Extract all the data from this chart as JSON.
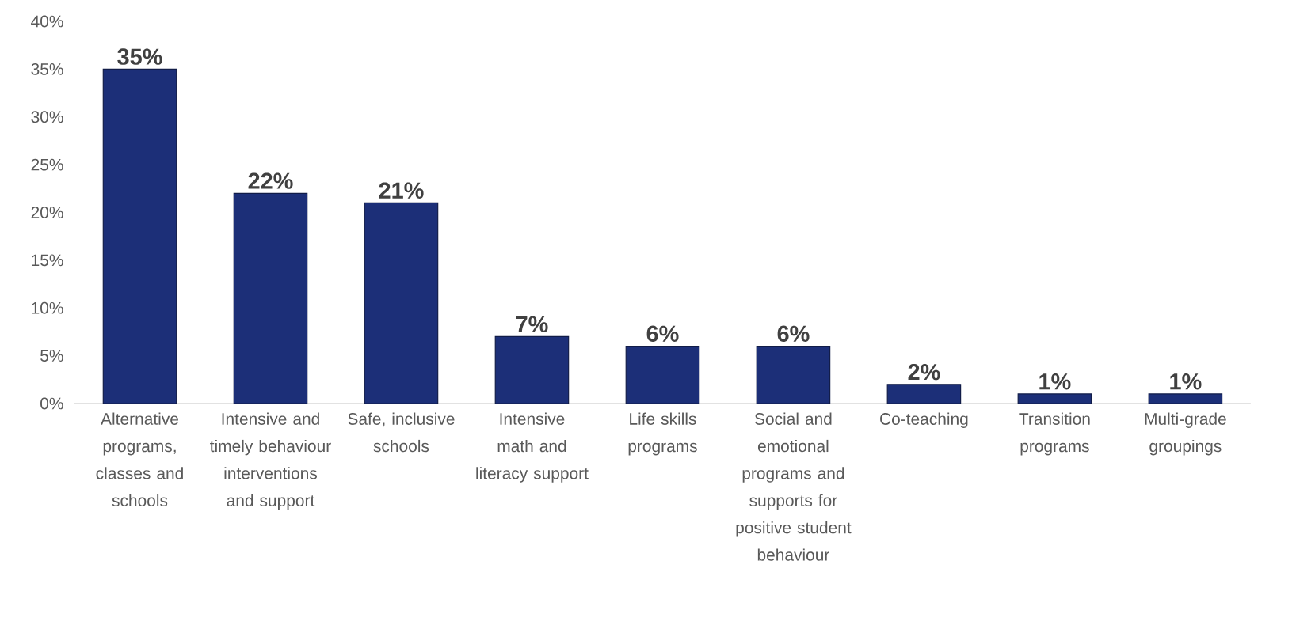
{
  "chart_data": {
    "type": "bar",
    "categories": [
      "Alternative programs, classes and schools",
      "Intensive and timely behaviour interventions and support",
      "Safe, inclusive schools",
      "Intensive math and literacy support",
      "Life skills programs",
      "Social and emotional programs and supports for positive student behaviour",
      "Co-teaching",
      "Transition programs",
      "Multi-grade groupings"
    ],
    "values": [
      35,
      22,
      21,
      7,
      6,
      6,
      2,
      1,
      1
    ],
    "value_labels": [
      "35%",
      "22%",
      "21%",
      "7%",
      "6%",
      "6%",
      "2%",
      "1%",
      "1%"
    ],
    "color": "#1c2f78",
    "ylim": [
      0,
      40
    ],
    "yticks": [
      {
        "value": 0,
        "label": "0%"
      },
      {
        "value": 5,
        "label": "5%"
      },
      {
        "value": 10,
        "label": "10%"
      },
      {
        "value": 15,
        "label": "15%"
      },
      {
        "value": 20,
        "label": "20%"
      },
      {
        "value": 25,
        "label": "25%"
      },
      {
        "value": 30,
        "label": "30%"
      },
      {
        "value": 35,
        "label": "35%"
      },
      {
        "value": 40,
        "label": "40%"
      }
    ]
  }
}
